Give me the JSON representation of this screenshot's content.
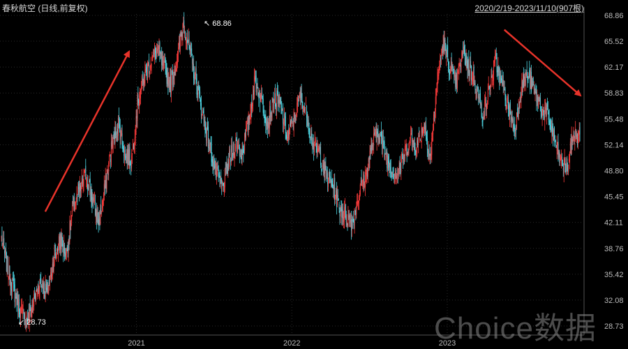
{
  "header": {
    "title": "春秋航空 (日线,前复权)",
    "range": "2020/2/19-2023/11/10(907根)"
  },
  "watermark": "Choice数据",
  "chart_data": {
    "type": "candlestick",
    "y_ticks": [
      "68.86",
      "65.52",
      "62.17",
      "58.83",
      "55.48",
      "52.14",
      "48.80",
      "45.45",
      "42.11",
      "38.76",
      "35.42",
      "32.08",
      "28.73"
    ],
    "x_ticks": [
      "2021",
      "2022",
      "2023"
    ],
    "ylim": [
      28.73,
      68.86
    ],
    "x_range": [
      "2020-02-19",
      "2023-11-10"
    ],
    "annotations": {
      "high": {
        "label": "68.86",
        "value": 68.86
      },
      "low": {
        "label": "28.73",
        "value": 28.73
      }
    },
    "trend_lines": [
      {
        "from": {
          "date": "2020-06-01",
          "value": 43.5
        },
        "to": {
          "date": "2020-12-15",
          "value": 64.2
        }
      },
      {
        "from": {
          "date": "2023-05-15",
          "value": 67.0
        },
        "to": {
          "date": "2023-11-10",
          "value": 58.5
        }
      }
    ],
    "series_anchor_closes": [
      40.0,
      36.0,
      33.0,
      30.5,
      29.5,
      32.0,
      34.5,
      33.0,
      37.0,
      40.0,
      38.0,
      44.0,
      46.0,
      48.5,
      45.0,
      42.0,
      47.0,
      52.0,
      55.0,
      51.0,
      50.0,
      58.0,
      61.0,
      63.0,
      64.5,
      62.0,
      60.0,
      63.0,
      68.0,
      64.0,
      60.0,
      56.0,
      52.0,
      48.5,
      46.5,
      50.0,
      52.5,
      51.0,
      55.0,
      60.5,
      58.0,
      55.0,
      58.0,
      57.0,
      53.0,
      55.5,
      58.5,
      56.0,
      52.0,
      51.0,
      48.0,
      47.0,
      44.0,
      43.0,
      42.0,
      46.0,
      48.0,
      52.0,
      54.0,
      51.0,
      49.0,
      48.5,
      51.0,
      53.0,
      52.0,
      55.0,
      50.5,
      60.0,
      65.5,
      62.0,
      60.0,
      64.0,
      62.0,
      60.0,
      56.0,
      59.0,
      63.0,
      60.0,
      57.0,
      54.0,
      60.0,
      61.0,
      59.0,
      57.0,
      56.0,
      53.0,
      50.0,
      49.0,
      53.5,
      53.0
    ]
  }
}
